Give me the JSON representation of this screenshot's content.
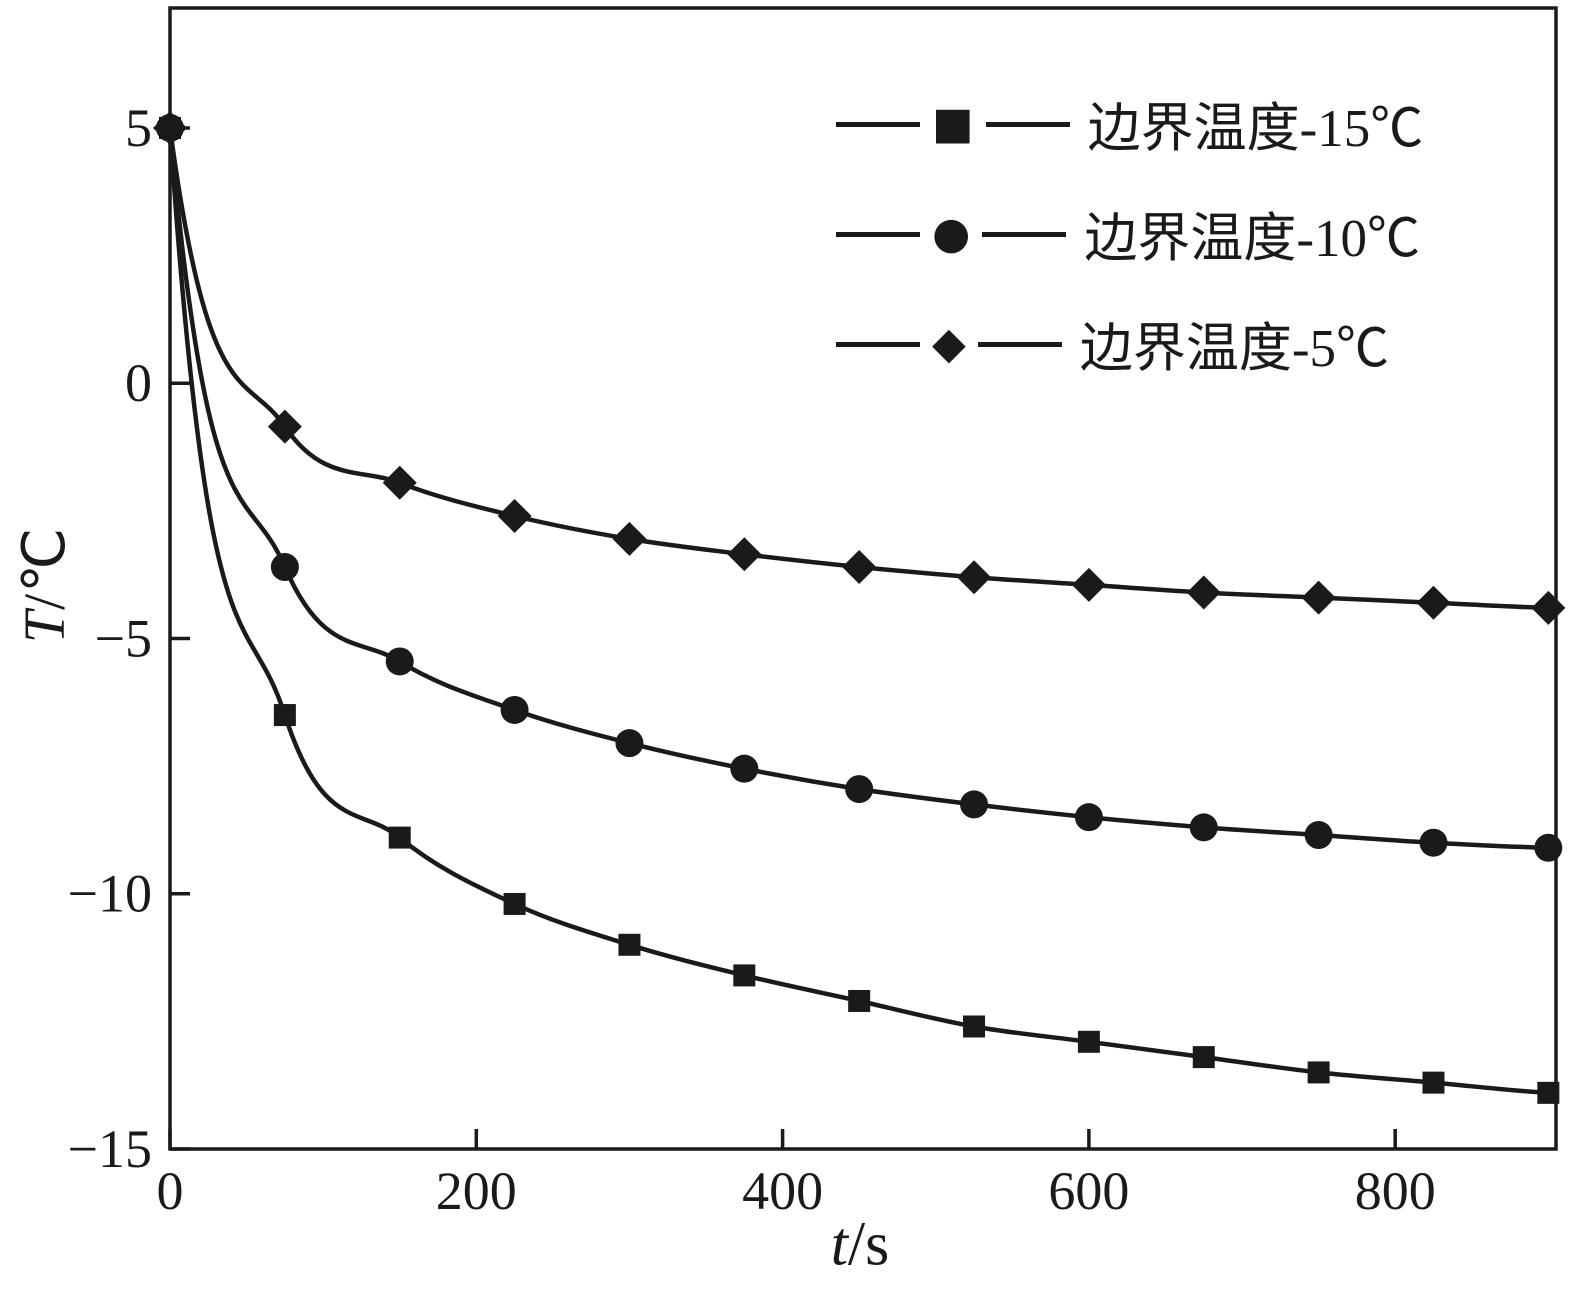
{
  "style": {
    "line_color": "#1a1a1a",
    "background": "#ffffff"
  },
  "chart_data": {
    "type": "line",
    "title": "",
    "xlabel_var": "t",
    "xlabel_sep": "/",
    "xlabel_unit": "s",
    "ylabel_var": "T",
    "ylabel_sep": "/",
    "ylabel_unit": "℃",
    "xlim": [
      0,
      905
    ],
    "ylim": [
      -15,
      7.35
    ],
    "grid": false,
    "legend_position": "top-right",
    "x_ticks": [
      {
        "v": 0,
        "label": "0"
      },
      {
        "v": 200,
        "label": "200"
      },
      {
        "v": 400,
        "label": "400"
      },
      {
        "v": 600,
        "label": "600"
      },
      {
        "v": 800,
        "label": "800"
      }
    ],
    "y_ticks": [
      {
        "v": 5,
        "label": "5"
      },
      {
        "v": 0,
        "label": "0"
      },
      {
        "v": -5,
        "label": "−5"
      },
      {
        "v": -10,
        "label": "−10"
      },
      {
        "v": -15,
        "label": "−15"
      }
    ],
    "x": [
      0,
      75,
      150,
      225,
      300,
      375,
      450,
      525,
      600,
      675,
      750,
      825,
      900
    ],
    "series": [
      {
        "name": "边界温度-15℃",
        "marker": "square",
        "glyph": "■",
        "values": [
          5,
          -6.5,
          -8.9,
          -10.2,
          -11.0,
          -11.6,
          -12.1,
          -12.6,
          -12.9,
          -13.2,
          -13.5,
          -13.7,
          -13.9
        ]
      },
      {
        "name": "边界温度-10℃",
        "marker": "circle",
        "glyph": "●",
        "values": [
          5,
          -3.6,
          -5.45,
          -6.4,
          -7.05,
          -7.55,
          -7.95,
          -8.25,
          -8.5,
          -8.7,
          -8.85,
          -9.0,
          -9.1
        ]
      },
      {
        "name": "边界温度-5℃",
        "marker": "diamond",
        "glyph": "◆",
        "values": [
          5,
          -0.85,
          -1.95,
          -2.6,
          -3.05,
          -3.35,
          -3.6,
          -3.8,
          -3.95,
          -4.1,
          -4.2,
          -4.3,
          -4.4
        ]
      }
    ]
  }
}
